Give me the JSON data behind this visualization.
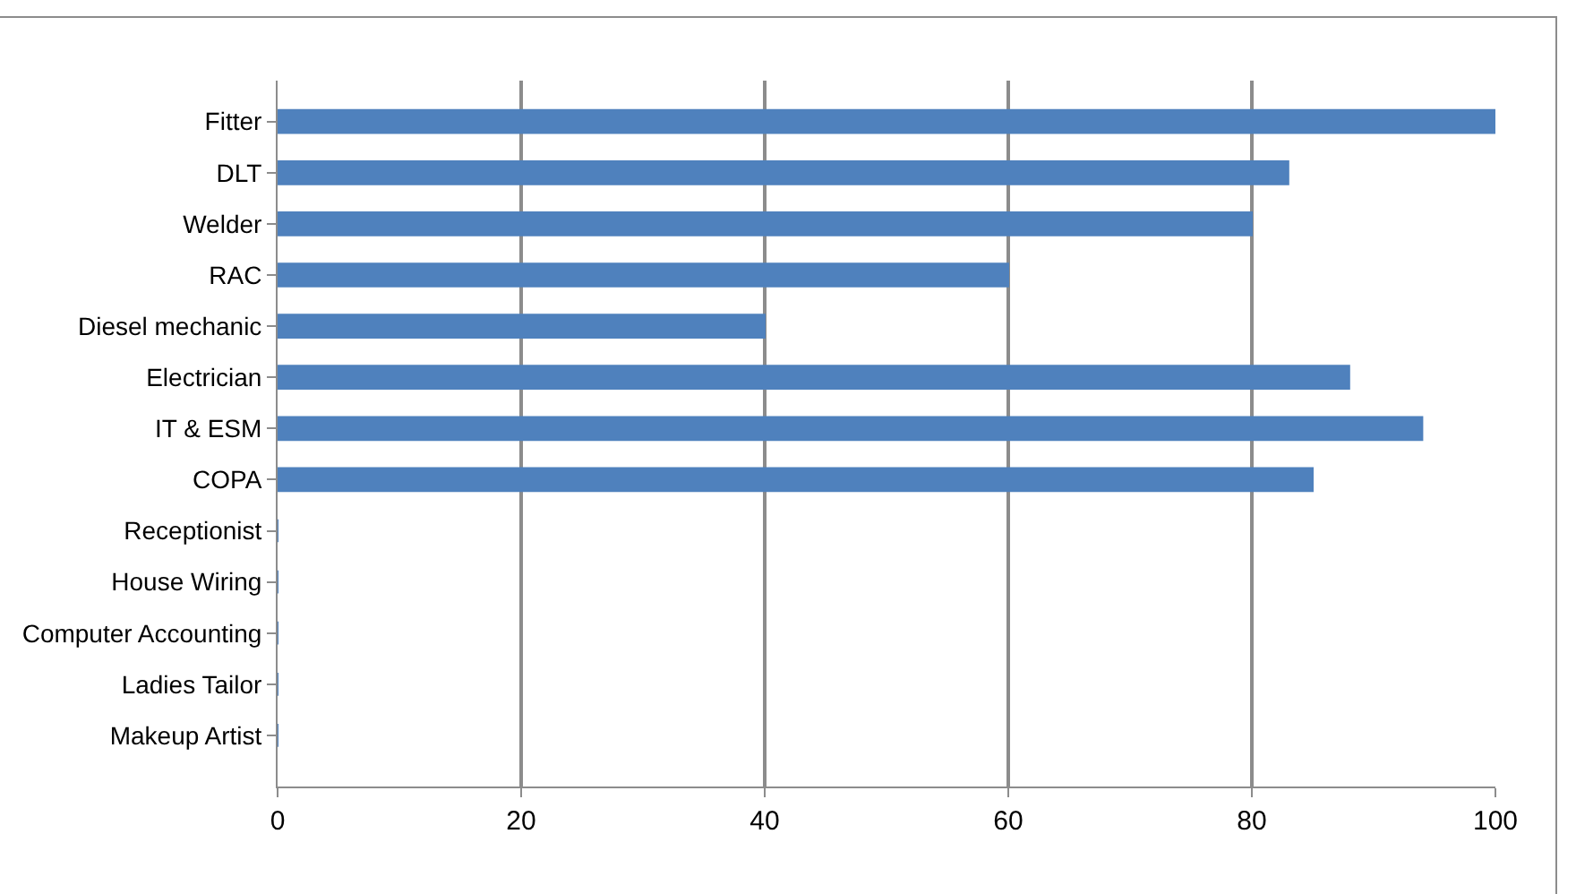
{
  "chart_data": {
    "type": "bar",
    "orientation": "horizontal",
    "categories": [
      "Fitter",
      "DLT",
      "Welder",
      "RAC",
      "Diesel mechanic",
      "Electrician",
      "IT & ESM",
      "COPA",
      "Receptionist",
      "House Wiring",
      "Computer Accounting",
      "Ladies Tailor",
      "Makeup Artist"
    ],
    "values": [
      100,
      83,
      80,
      60,
      40,
      88,
      94,
      85,
      0,
      0,
      0,
      0,
      0
    ],
    "color": "#4f81bd",
    "xlim": [
      0,
      100
    ],
    "xticks": [
      0,
      20,
      40,
      60,
      80,
      100
    ],
    "grid": "x"
  }
}
